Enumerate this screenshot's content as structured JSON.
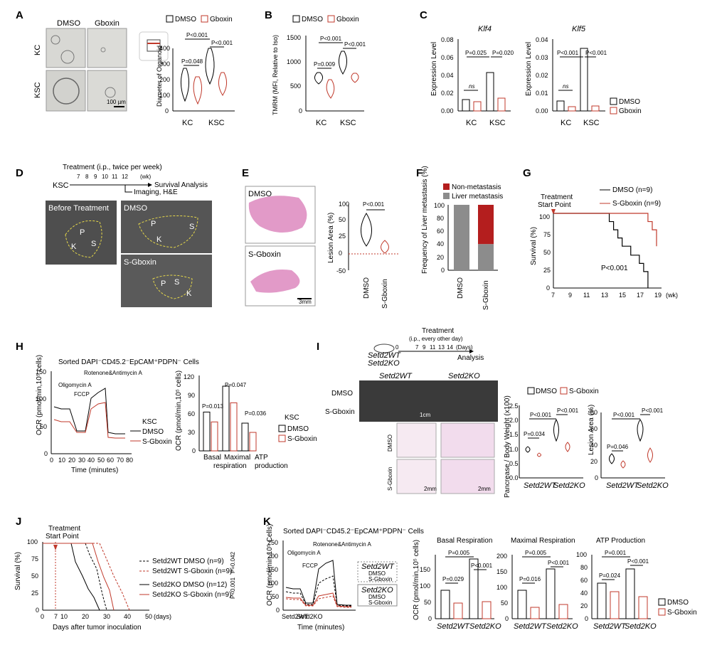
{
  "panel_letters": [
    "A",
    "B",
    "C",
    "D",
    "E",
    "F",
    "G",
    "H",
    "I",
    "J",
    "K"
  ],
  "colors": {
    "dmso": "#000000",
    "gboxin": "#c0392b",
    "he_pink": "#e29ac8",
    "us_gray": "#5a5a5a",
    "nonmet": "#b41e1e",
    "met": "#8c8c8c"
  },
  "A": {
    "col_labels": [
      "DMSO",
      "Gboxin"
    ],
    "row_labels": [
      "KC",
      "KSC"
    ],
    "scalebar": "100 µm",
    "legend": [
      "DMSO",
      "Gboxin"
    ],
    "ylabel": "Diameter of Organoid",
    "yticks": [
      "0",
      "100",
      "200",
      "300",
      "400"
    ],
    "xticks": [
      "KC",
      "KSC"
    ],
    "pvals": [
      "P=0.048",
      "P<0.001",
      "P<0.001"
    ]
  },
  "B": {
    "legend": [
      "DMSO",
      "Gboxin"
    ],
    "ylabel": "TMRM (MFI, Relative to Iso)",
    "yticks": [
      "0",
      "500",
      "1000",
      "1500"
    ],
    "xticks": [
      "KC",
      "KSC"
    ],
    "pvals": [
      "P=0.009",
      "P<0.001",
      "P<0.001"
    ]
  },
  "C": {
    "titles": [
      "Klf4",
      "Klf5"
    ],
    "ylabel": "Expression Level",
    "yticks1": [
      "0.00",
      "0.02",
      "0.04",
      "0.06",
      "0.08"
    ],
    "yticks2": [
      "0.00",
      "0.01",
      "0.02",
      "0.03",
      "0.04"
    ],
    "xticks": [
      "KC",
      "KSC"
    ],
    "p1": [
      "ns",
      "P=0.025",
      "P=0.020"
    ],
    "p2": [
      "ns",
      "P<0.001",
      "P<0.001"
    ],
    "legend": [
      "DMSO",
      "Gboxin"
    ]
  },
  "D": {
    "treatment": "Treatment (i.p., twice per week)",
    "days": [
      "7",
      "8",
      "9",
      "10",
      "11",
      "12"
    ],
    "wk": "(wk)",
    "ksc": "KSC",
    "survival": "Survival Analysis",
    "imaging": "Imaging, H&E",
    "img_labels": [
      "Before Treatment",
      "DMSO",
      "S-Gboxin"
    ],
    "organ_labels": [
      "P",
      "S",
      "K"
    ]
  },
  "E": {
    "img_labels": [
      "DMSO",
      "S-Gboxin"
    ],
    "scalebar": "3mm",
    "ylabel": "Lesion Area (%)",
    "yticks": [
      "-50",
      "-25",
      "0",
      "25",
      "50",
      "75",
      "100"
    ],
    "xticks": [
      "DMSO",
      "S-Gboxin"
    ],
    "pval": "P<0.001"
  },
  "F": {
    "legend": [
      "Non-metastasis",
      "Liver metastasis"
    ],
    "ylabel": "Frequency of Liver metastasis (%)",
    "yticks": [
      "0",
      "20",
      "40",
      "60",
      "80",
      "100"
    ],
    "xticks": [
      "DMSO",
      "S-Gboxin"
    ]
  },
  "G": {
    "annot": [
      "Treatment",
      "Start Point"
    ],
    "legend": [
      "DMSO (n=9)",
      "S-Gboxin (n=9)"
    ],
    "ylabel": "Survival (%)",
    "yticks": [
      "0",
      "25",
      "50",
      "75",
      "100"
    ],
    "xticks": [
      "7",
      "9",
      "11",
      "13",
      "15",
      "17",
      "19"
    ],
    "unit": "(wk)",
    "pval": "P<0.001"
  },
  "H": {
    "title": "Sorted DAPI⁻CD45.2⁻EpCAM⁺PDPN⁻ Cells",
    "ylabel": "OCR (pmol/min,10⁵ cells)",
    "xlabel": "Time (minutes)",
    "yticks": [
      "0",
      "50",
      "100",
      "150"
    ],
    "xticks": [
      "0",
      "10",
      "20",
      "30",
      "40",
      "50",
      "60",
      "70",
      "80"
    ],
    "annot": [
      "Oligomycin A",
      "FCCP",
      "Rotenone&Antimycin A"
    ],
    "legend_title": "KSC",
    "legend": [
      "DMSO",
      "S-Gboxin"
    ],
    "bar_ylabel": "OCR (pmol/min,10⁵ cells)",
    "bar_yticks": [
      "0",
      "30",
      "60",
      "90",
      "120"
    ],
    "bar_x": [
      "Basal",
      "Maximal",
      "ATP"
    ],
    "bar_x2": [
      "respiration",
      "production"
    ],
    "pvals": [
      "P=0.013",
      "P=0.047",
      "P=0.036"
    ],
    "legend2_title": "KSC",
    "legend2": [
      "DMSO",
      "S-Gboxin"
    ]
  },
  "I": {
    "treatment": "Treatment",
    "regimen": "(i.p., every other day)",
    "days": [
      "0",
      "7",
      "9",
      "11",
      "13",
      "14"
    ],
    "days_unit": "(Days)",
    "mice": [
      "Setd2WT",
      "Setd2KO"
    ],
    "analysis": "Analysis",
    "groups": [
      "Setd2WT",
      "Setd2KO"
    ],
    "rows": [
      "DMSO",
      "S-Gboxin"
    ],
    "scalebar": "1cm",
    "scalebar2": "2mm",
    "legend": [
      "DMSO",
      "S-Gboxin"
    ],
    "ylabel1": "Pancrease / Body Weight (x100)",
    "yticks1": [
      "0.0",
      "0.5",
      "1.0",
      "1.5",
      "2.0",
      "2.5"
    ],
    "ylabel2": "Lesion Area (%)",
    "yticks2": [
      "0",
      "20",
      "40",
      "60",
      "80"
    ],
    "xticks": [
      "Setd2WT",
      "Setd2KO"
    ],
    "p1": [
      "P=0.034",
      "P<0.001",
      "P<0.001"
    ],
    "p2": [
      "P=0.046",
      "P<0.001",
      "P<0.001"
    ]
  },
  "J": {
    "annot": [
      "Treatment",
      "Start Point"
    ],
    "ylabel": "Survival (%)",
    "xlabel": "Days after tumor inoculation",
    "yticks": [
      "0",
      "25",
      "50",
      "75",
      "100"
    ],
    "xticks": [
      "0",
      "7",
      "10",
      "20",
      "30",
      "40",
      "50"
    ],
    "unit": "(days)",
    "legend": [
      "Setd2WT DMSO (n=9)",
      "Setd2WT S-Gboxin (n=9)",
      "Setd2KO DMSO (n=12)",
      "Setd2KO S-Gboxin (n=9)"
    ],
    "pvals": [
      "P=0.042",
      "P<0.001"
    ]
  },
  "K": {
    "title": "Sorted DAPI⁻CD45.2⁻EpCAM⁺PDPN⁻ Cells",
    "ylabel": "OCR (pmol/min,10⁵ Cells)",
    "xlabel": "Time (minutes)",
    "yticks": [
      "0",
      "50",
      "100",
      "150",
      "200",
      "250"
    ],
    "xticks": [
      "Setd2WT",
      "Setd2KO"
    ],
    "annot": [
      "Oligomycin A",
      "FCCP",
      "Rotenone&Antimycin A"
    ],
    "legend_groups": [
      "Setd2WT",
      "Setd2KO"
    ],
    "legend_items": [
      "DMSO",
      "S-Gboxin"
    ],
    "bar_titles": [
      "Basal Respiration",
      "Maximal Respiration",
      "ATP Production"
    ],
    "bar_ylabel": "OCR (pmol/min,10⁵ cells)",
    "bar_yticks1": [
      "0",
      "50",
      "100",
      "150"
    ],
    "bar_yticks2": [
      "0",
      "50",
      "100",
      "150",
      "200"
    ],
    "bar_yticks3": [
      "0",
      "20",
      "40",
      "60",
      "80",
      "100"
    ],
    "p1": [
      "P=0.029",
      "P=0.005",
      "P<0.001"
    ],
    "p2": [
      "P=0.016",
      "P=0.005",
      "P<0.001"
    ],
    "p3": [
      "P=0.024",
      "P=0.001",
      "P<0.001"
    ],
    "legend": [
      "DMSO",
      "S-Gboxin"
    ]
  },
  "chart_data": [
    {
      "panel": "G",
      "type": "line",
      "series": [
        {
          "name": "DMSO (n=9)",
          "x": [
            7,
            13,
            13.5,
            14,
            14.5,
            15,
            16,
            17,
            17.5,
            18
          ],
          "y": [
            100,
            100,
            89,
            78,
            67,
            56,
            44,
            33,
            22,
            0
          ]
        },
        {
          "name": "S-Gboxin (n=9)",
          "x": [
            7,
            17.5,
            18,
            18.5,
            19
          ],
          "y": [
            100,
            100,
            89,
            78,
            56
          ]
        }
      ]
    },
    {
      "panel": "F",
      "type": "bar",
      "categories": [
        "DMSO",
        "S-Gboxin"
      ],
      "series": [
        {
          "name": "Liver metastasis",
          "values": [
            100,
            40
          ]
        },
        {
          "name": "Non-metastasis",
          "values": [
            0,
            60
          ]
        }
      ]
    },
    {
      "panel": "H",
      "type": "bar",
      "categories": [
        "Basal",
        "Maximal",
        "ATP"
      ],
      "series": [
        {
          "name": "DMSO",
          "values": [
            63,
            105,
            45
          ]
        },
        {
          "name": "S-Gboxin",
          "values": [
            47,
            78,
            30
          ]
        }
      ]
    }
  ]
}
